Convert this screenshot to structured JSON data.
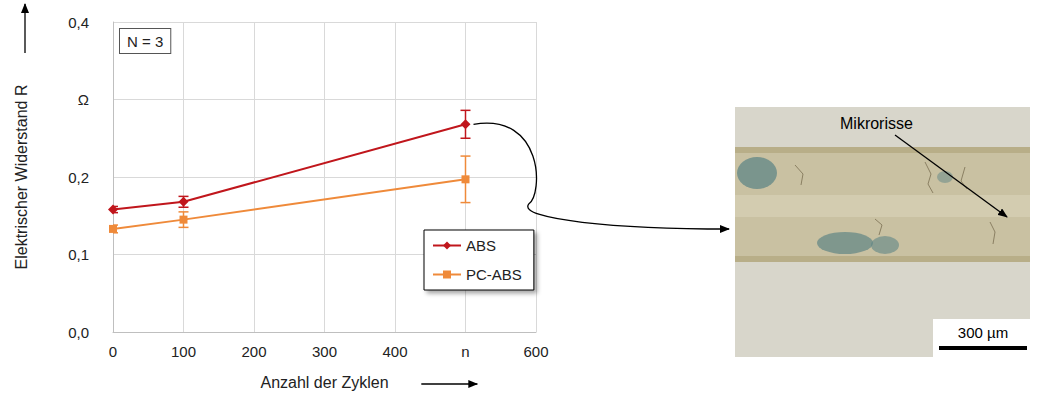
{
  "chart_data": {
    "type": "line",
    "annotations": [
      "N = 3",
      "Mikrorisse",
      "300 µm"
    ],
    "x_label": "Anzahl der Zyklen",
    "y_label": "Elektrischer Widerstand R",
    "x": [
      0,
      100,
      500
    ],
    "xlim": [
      0,
      600
    ],
    "xticks": [
      0,
      100,
      200,
      300,
      400,
      {
        "value": 500,
        "label": "n"
      },
      600
    ],
    "ylim": [
      0,
      0.4
    ],
    "yticks": [
      {
        "value": 0,
        "label": "0,0"
      },
      {
        "value": 0.1,
        "label": "0,1"
      },
      {
        "value": 0.2,
        "label": "0,2"
      },
      {
        "value": 0.3,
        "label": "Ω"
      },
      {
        "value": 0.4,
        "label": "0,4"
      }
    ],
    "grid": true,
    "legend": "right",
    "series": [
      {
        "name": "ABS",
        "color": "#c0161c",
        "marker": "diamond",
        "values": [
          0.158,
          0.168,
          0.268
        ],
        "errors": [
          0.004,
          0.007,
          0.018
        ]
      },
      {
        "name": "PC-ABS",
        "color": "#ef8a3a",
        "marker": "square",
        "values": [
          0.133,
          0.145,
          0.197
        ],
        "errors": [
          0.005,
          0.01,
          0.03
        ]
      }
    ]
  }
}
